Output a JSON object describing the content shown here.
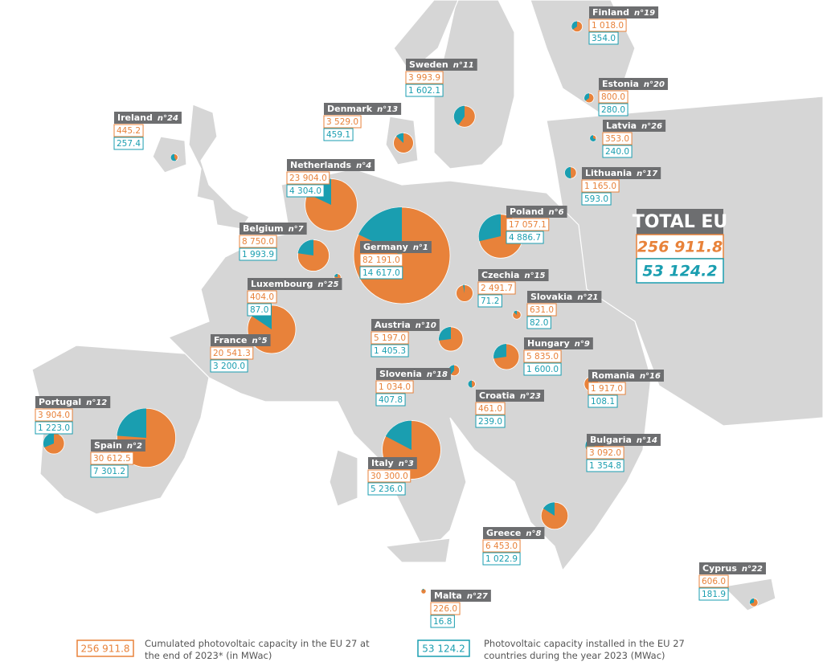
{
  "total": {
    "title": "TOTAL EU",
    "cumulated": "256 911.8",
    "installed": "53 124.2"
  },
  "legend": {
    "cumulated_text": "Cumulated photovoltaic capacity in the EU 27 at the end of 2023* (in MWac)",
    "installed_text": "Photovoltaic capacity installed in the EU 27 countries during the year 2023 (MWac)"
  },
  "colors": {
    "cumulated": "#e8823a",
    "installed": "#1a9eb0"
  },
  "countries": [
    {
      "name": "Finland",
      "rank": "n°19",
      "cumulated": {
        "value": 1018.0,
        "label": "1 018.0"
      },
      "installed": {
        "value": 354.0,
        "label": "354.0"
      }
    },
    {
      "name": "Sweden",
      "rank": "n°11",
      "cumulated": {
        "value": 3993.9,
        "label": "3 993.9"
      },
      "installed": {
        "value": 1602.1,
        "label": "1 602.1"
      }
    },
    {
      "name": "Estonia",
      "rank": "n°20",
      "cumulated": {
        "value": 800.0,
        "label": "800.0"
      },
      "installed": {
        "value": 280.0,
        "label": "280.0"
      }
    },
    {
      "name": "Denmark",
      "rank": "n°13",
      "cumulated": {
        "value": 3529.0,
        "label": "3 529.0"
      },
      "installed": {
        "value": 459.1,
        "label": "459.1"
      }
    },
    {
      "name": "Ireland",
      "rank": "n°24",
      "cumulated": {
        "value": 445.2,
        "label": "445.2"
      },
      "installed": {
        "value": 257.4,
        "label": "257.4"
      }
    },
    {
      "name": "Latvia",
      "rank": "n°26",
      "cumulated": {
        "value": 353.0,
        "label": "353.0"
      },
      "installed": {
        "value": 240.0,
        "label": "240.0"
      }
    },
    {
      "name": "Lithuania",
      "rank": "n°17",
      "cumulated": {
        "value": 1165.0,
        "label": "1 165.0"
      },
      "installed": {
        "value": 593.0,
        "label": "593.0"
      }
    },
    {
      "name": "Netherlands",
      "rank": "n°4",
      "cumulated": {
        "value": 23904.0,
        "label": "23 904.0"
      },
      "installed": {
        "value": 4304.0,
        "label": "4 304.0"
      }
    },
    {
      "name": "Poland",
      "rank": "n°6",
      "cumulated": {
        "value": 17057.1,
        "label": "17 057.1"
      },
      "installed": {
        "value": 4886.7,
        "label": "4 886.7"
      }
    },
    {
      "name": "Belgium",
      "rank": "n°7",
      "cumulated": {
        "value": 8750.0,
        "label": "8 750.0"
      },
      "installed": {
        "value": 1993.9,
        "label": "1 993.9"
      }
    },
    {
      "name": "Germany",
      "rank": "n°1",
      "cumulated": {
        "value": 82191.0,
        "label": "82 191.0"
      },
      "installed": {
        "value": 14617.0,
        "label": "14 617.0"
      }
    },
    {
      "name": "Czechia",
      "rank": "n°15",
      "cumulated": {
        "value": 2491.7,
        "label": "2 491.7"
      },
      "installed": {
        "value": 71.2,
        "label": "71.2"
      }
    },
    {
      "name": "Luxembourg",
      "rank": "n°25",
      "cumulated": {
        "value": 404.0,
        "label": "404.0"
      },
      "installed": {
        "value": 87.0,
        "label": "87.0"
      }
    },
    {
      "name": "Slovakia",
      "rank": "n°21",
      "cumulated": {
        "value": 631.0,
        "label": "631.0"
      },
      "installed": {
        "value": 82.0,
        "label": "82.0"
      }
    },
    {
      "name": "France",
      "rank": "n°5",
      "cumulated": {
        "value": 20541.3,
        "label": "20 541.3"
      },
      "installed": {
        "value": 3200.0,
        "label": "3 200.0"
      }
    },
    {
      "name": "Austria",
      "rank": "n°10",
      "cumulated": {
        "value": 5197.0,
        "label": "5 197.0"
      },
      "installed": {
        "value": 1405.3,
        "label": "1 405.3"
      }
    },
    {
      "name": "Hungary",
      "rank": "n°9",
      "cumulated": {
        "value": 5835.0,
        "label": "5 835.0"
      },
      "installed": {
        "value": 1600.0,
        "label": "1 600.0"
      }
    },
    {
      "name": "Romania",
      "rank": "n°16",
      "cumulated": {
        "value": 1917.0,
        "label": "1 917.0"
      },
      "installed": {
        "value": 108.1,
        "label": "108.1"
      }
    },
    {
      "name": "Slovenia",
      "rank": "n°18",
      "cumulated": {
        "value": 1034.0,
        "label": "1 034.0"
      },
      "installed": {
        "value": 407.8,
        "label": "407.8"
      }
    },
    {
      "name": "Croatia",
      "rank": "n°23",
      "cumulated": {
        "value": 461.0,
        "label": "461.0"
      },
      "installed": {
        "value": 239.0,
        "label": "239.0"
      }
    },
    {
      "name": "Portugal",
      "rank": "n°12",
      "cumulated": {
        "value": 3904.0,
        "label": "3 904.0"
      },
      "installed": {
        "value": 1223.0,
        "label": "1 223.0"
      }
    },
    {
      "name": "Spain",
      "rank": "n°2",
      "cumulated": {
        "value": 30612.5,
        "label": "30 612.5"
      },
      "installed": {
        "value": 7301.2,
        "label": "7 301.2"
      }
    },
    {
      "name": "Bulgaria",
      "rank": "n°14",
      "cumulated": {
        "value": 3092.0,
        "label": "3 092.0"
      },
      "installed": {
        "value": 1354.8,
        "label": "1 354.8"
      }
    },
    {
      "name": "Italy",
      "rank": "n°3",
      "cumulated": {
        "value": 30300.0,
        "label": "30 300.0"
      },
      "installed": {
        "value": 5236.0,
        "label": "5 236.0"
      }
    },
    {
      "name": "Greece",
      "rank": "n°8",
      "cumulated": {
        "value": 6453.0,
        "label": "6 453.0"
      },
      "installed": {
        "value": 1022.9,
        "label": "1 022.9"
      }
    },
    {
      "name": "Cyprus",
      "rank": "n°22",
      "cumulated": {
        "value": 606.0,
        "label": "606.0"
      },
      "installed": {
        "value": 181.9,
        "label": "181.9"
      }
    },
    {
      "name": "Malta",
      "rank": "n°27",
      "cumulated": {
        "value": 226.0,
        "label": "226.0"
      },
      "installed": {
        "value": 16.8,
        "label": "16.8"
      }
    }
  ]
}
